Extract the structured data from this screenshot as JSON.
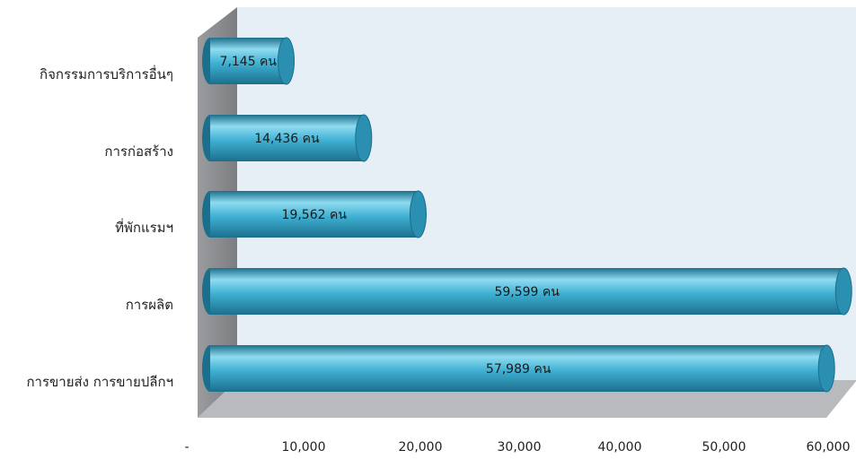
{
  "chart_data": {
    "type": "bar",
    "orientation": "horizontal",
    "style": "3d-cylinder",
    "title": "",
    "xlabel": "",
    "ylabel": "",
    "categories": [
      "กิจกรรมการบริการอื่นๆ",
      "การก่อสร้าง",
      "ที่พักแรมฯ",
      "การผลิต",
      "การขายส่ง การขายปลีกฯ"
    ],
    "values": [
      7145,
      14436,
      19562,
      59599,
      57989
    ],
    "data_labels": [
      "7,145 คน",
      "14,436 คน",
      "19,562 คน",
      "59,599 คน",
      "57,989 คน"
    ],
    "xlim": [
      0,
      60000
    ],
    "x_ticks": [
      0,
      10000,
      20000,
      30000,
      40000,
      50000,
      60000
    ],
    "x_tick_labels": [
      "-",
      "10,000",
      "20,000",
      "30,000",
      "40,000",
      "50,000",
      "60,000"
    ],
    "legend": "none",
    "grid": false,
    "colors": {
      "bar": "#3fb0d3",
      "bar_light": "#8fdbf0",
      "bar_dark": "#1c6f8c",
      "bar_end": "#2a8fb0",
      "back_wall": "#e6eef6",
      "side_wall": "#8b8d90",
      "floor": "#b8babd"
    }
  }
}
